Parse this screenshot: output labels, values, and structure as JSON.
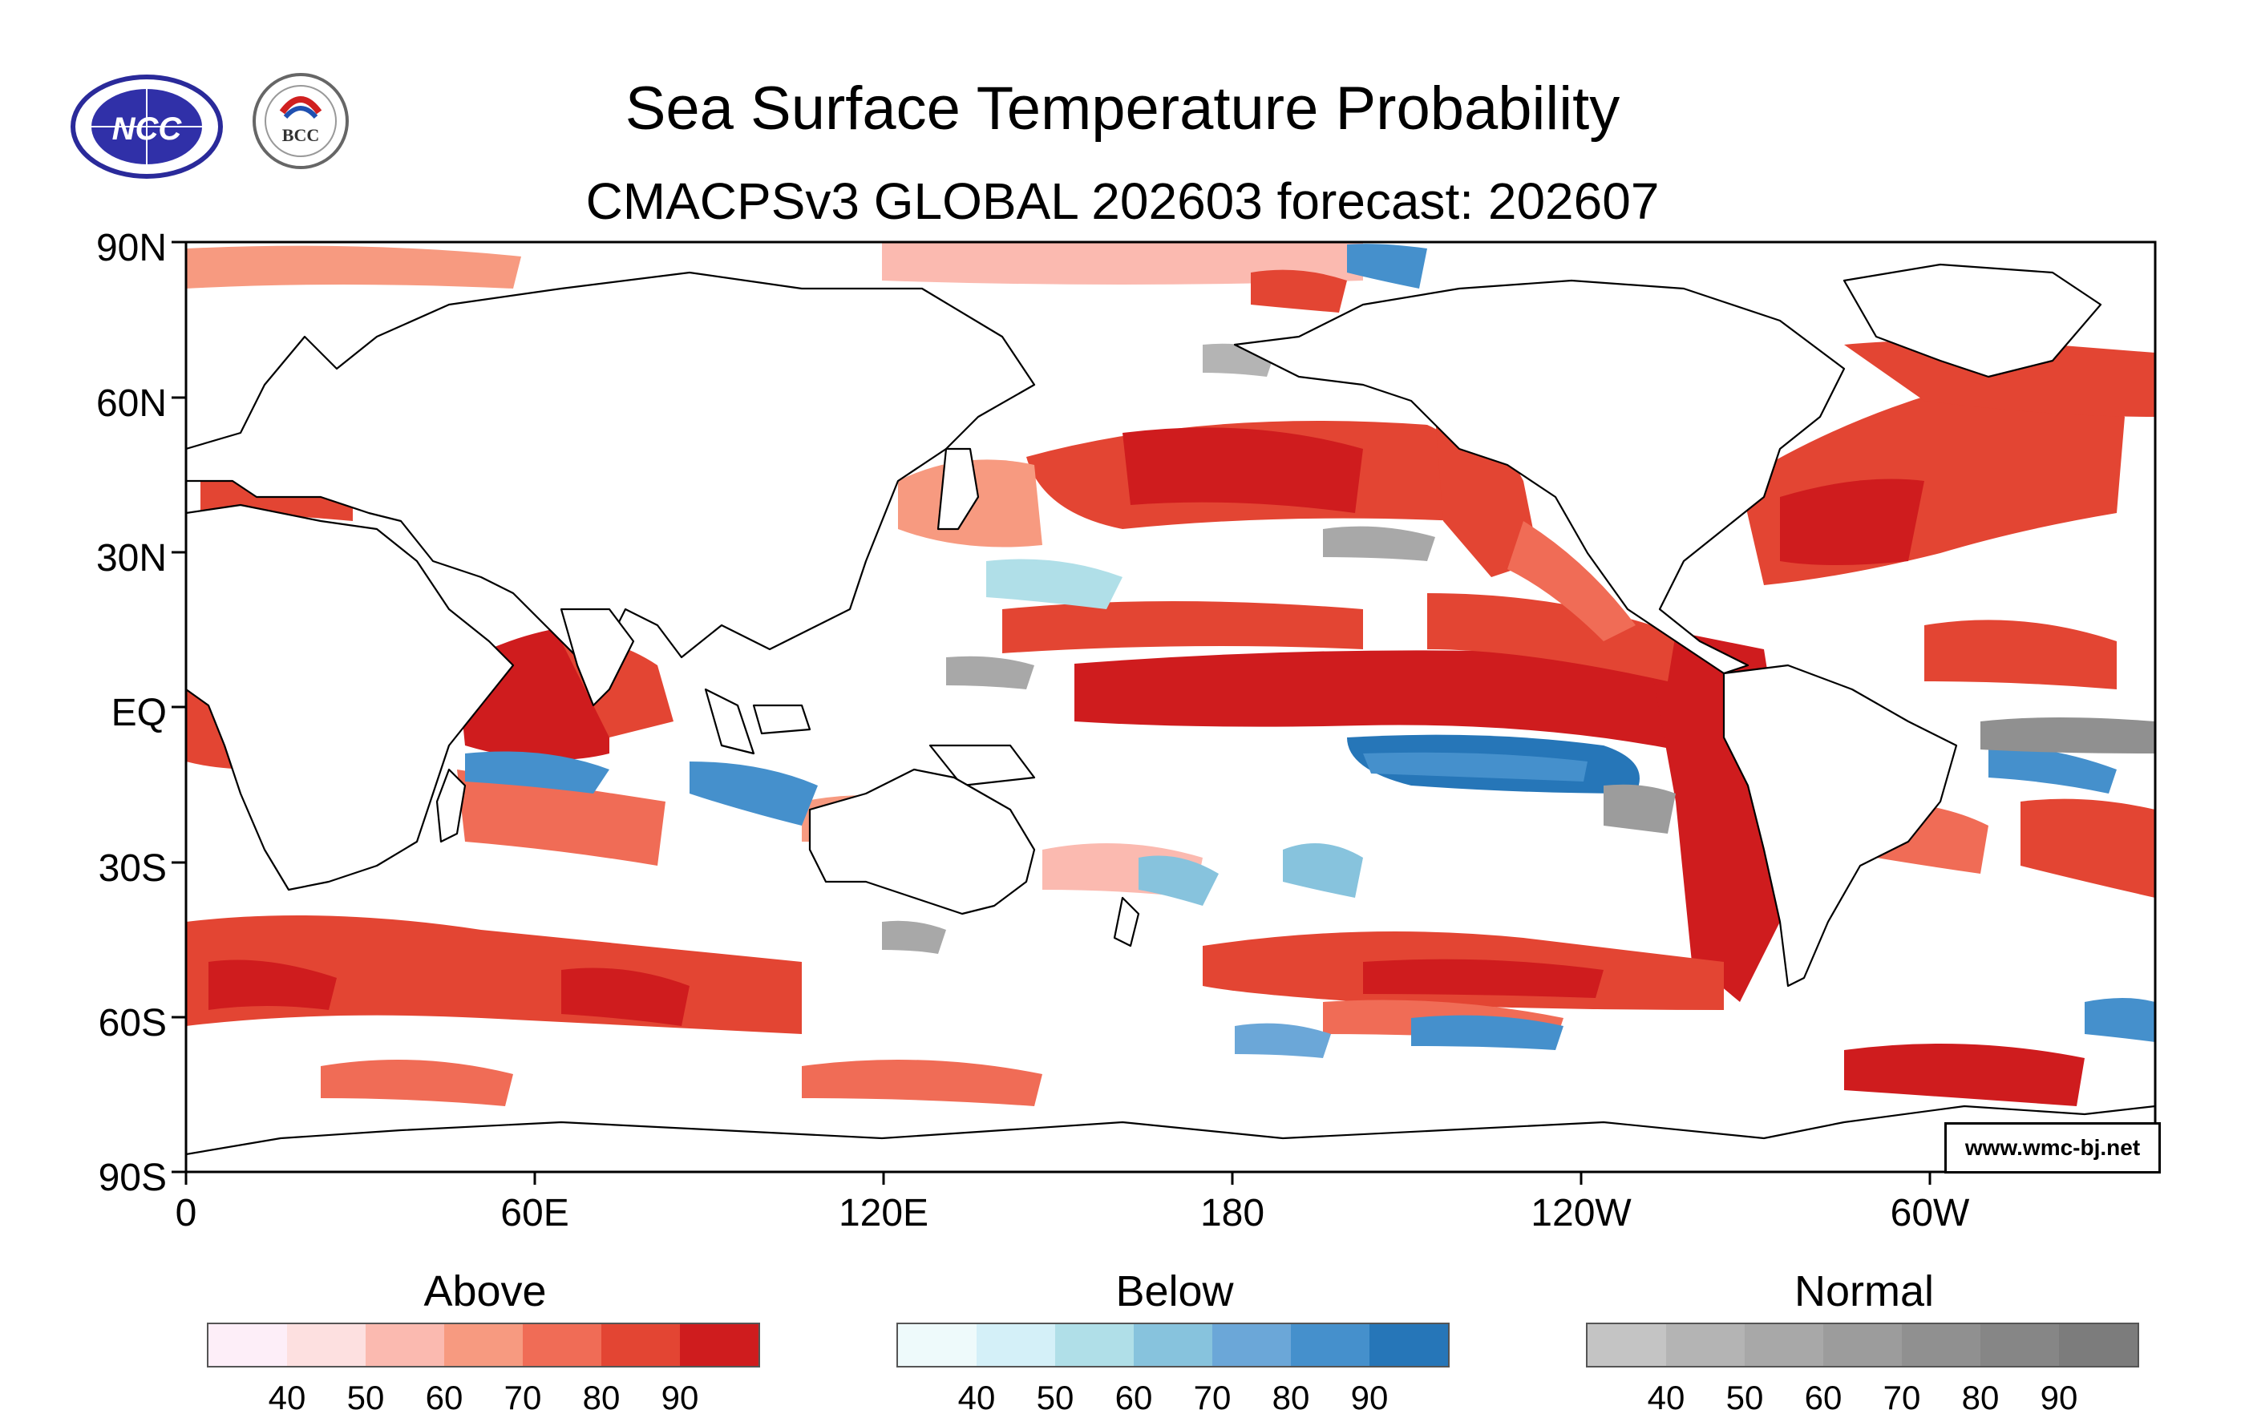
{
  "title": "Sea Surface Temperature Probability",
  "subtitle": "CMACPSv3 GLOBAL 202603 forecast: 202607",
  "logos": {
    "left": "NCC",
    "right": "BCC"
  },
  "credit": "www.wmc-bj.net",
  "axes": {
    "y_labels": [
      "90N",
      "60N",
      "30N",
      "EQ",
      "30S",
      "60S",
      "90S"
    ],
    "x_labels": [
      "0",
      "60E",
      "120E",
      "180",
      "120W",
      "60W"
    ]
  },
  "legend": {
    "above": {
      "title": "Above",
      "ticks": [
        "40",
        "50",
        "60",
        "70",
        "80",
        "90"
      ],
      "colors": [
        "#fdeef8",
        "#fde0e0",
        "#fbbab0",
        "#f79a80",
        "#f06c56",
        "#e34533",
        "#cf1c1e"
      ]
    },
    "below": {
      "title": "Below",
      "ticks": [
        "40",
        "50",
        "60",
        "70",
        "80",
        "90"
      ],
      "colors": [
        "#eefafb",
        "#d4f0f8",
        "#b0dfe8",
        "#87c3dd",
        "#6ba7d8",
        "#4590cc",
        "#2676b8"
      ]
    },
    "normal": {
      "title": "Normal",
      "ticks": [
        "40",
        "50",
        "60",
        "70",
        "80",
        "90"
      ],
      "colors": [
        "#c4c4c4",
        "#b4b4b4",
        "#a8a8a8",
        "#9c9c9c",
        "#909090",
        "#868686",
        "#7c7c7c"
      ]
    }
  }
}
